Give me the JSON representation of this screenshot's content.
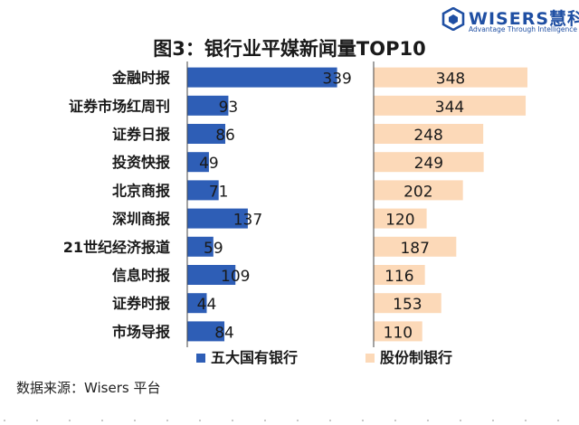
{
  "logo": {
    "word": "WISERS慧科",
    "tagline": "Advantage Through Intelligence"
  },
  "title": "图3：银行业平媒新闻量TOP10",
  "source": "数据来源：Wisers 平台",
  "colors": {
    "big5": "#2e5eb6",
    "joint": "#fcd9b8",
    "axis": "#444444",
    "text": "#1a1a1a"
  },
  "chart_data": {
    "type": "bar",
    "orientation": "horizontal",
    "categories": [
      "金融时报",
      "证券市场红周刊",
      "证券日报",
      "投资快报",
      "北京商报",
      "深圳商报",
      "21世纪经济报道",
      "信息时报",
      "证券时报",
      "市场导报"
    ],
    "series": [
      {
        "name": "五大国有银行",
        "values": [
          339,
          93,
          86,
          49,
          71,
          137,
          59,
          109,
          44,
          84
        ]
      },
      {
        "name": "股份制银行",
        "values": [
          348,
          344,
          248,
          249,
          202,
          120,
          187,
          116,
          153,
          110
        ]
      }
    ],
    "legend_position": "bottom",
    "grid": false
  }
}
